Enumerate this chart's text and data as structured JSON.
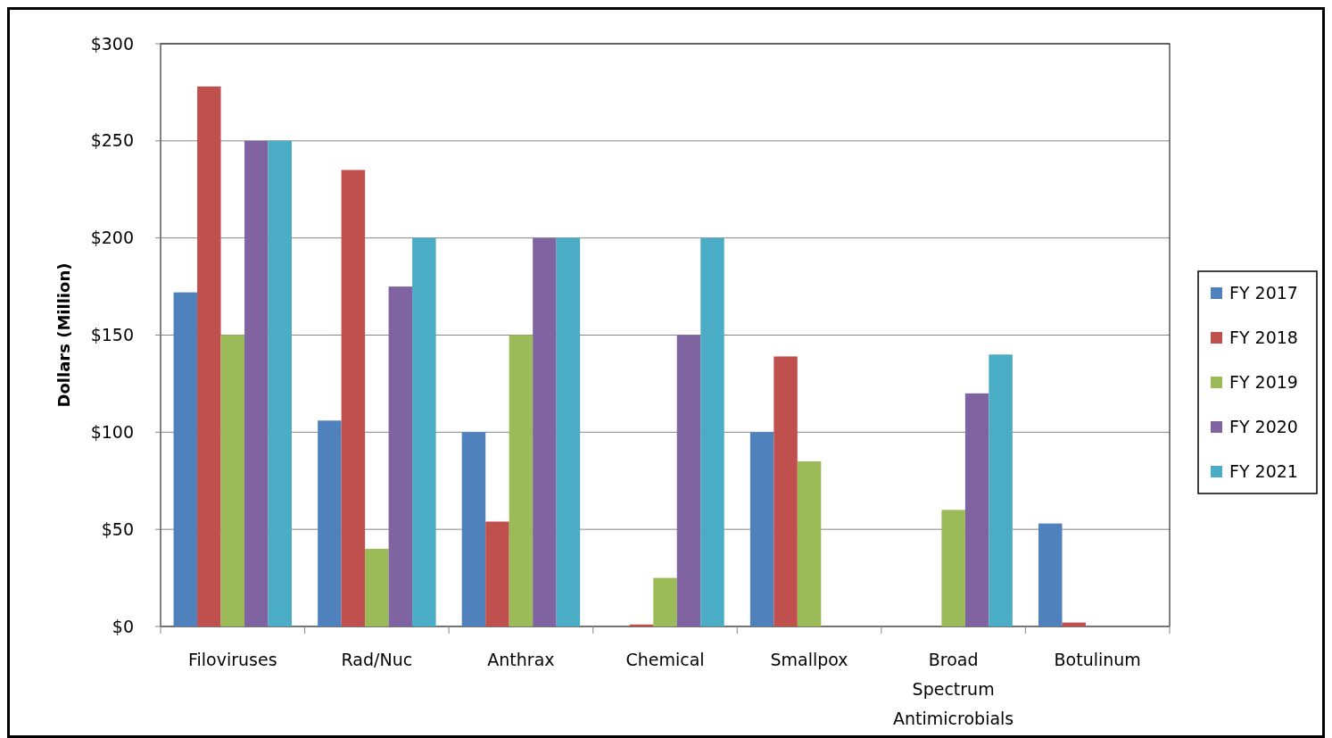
{
  "chart_data": {
    "type": "bar",
    "ylabel": "Dollars (Million)",
    "categories": [
      "Filoviruses",
      "Rad/Nuc",
      "Anthrax",
      "Chemical",
      "Smallpox",
      "Broad Spectrum Antimicrobials",
      "Botulinum"
    ],
    "series": [
      {
        "name": "FY 2017",
        "color": "#4f81bd",
        "values": [
          172,
          106,
          100,
          null,
          100,
          null,
          53
        ]
      },
      {
        "name": "FY 2018",
        "color": "#c0504d",
        "values": [
          278,
          235,
          54,
          1,
          139,
          null,
          2
        ]
      },
      {
        "name": "FY 2019",
        "color": "#9bbb59",
        "values": [
          150,
          40,
          150,
          25,
          85,
          60,
          null
        ]
      },
      {
        "name": "FY 2020",
        "color": "#8064a2",
        "values": [
          250,
          175,
          200,
          150,
          null,
          120,
          null
        ]
      },
      {
        "name": "FY 2021",
        "color": "#4bacc6",
        "values": [
          250,
          200,
          200,
          200,
          null,
          140,
          null
        ]
      }
    ],
    "ylim": [
      0,
      300
    ],
    "yticks": [
      {
        "value": 0,
        "label": "$0"
      },
      {
        "value": 50,
        "label": "$50"
      },
      {
        "value": 100,
        "label": "$100"
      },
      {
        "value": 150,
        "label": "$150"
      },
      {
        "value": 200,
        "label": "$200"
      },
      {
        "value": 250,
        "label": "$250"
      },
      {
        "value": 300,
        "label": "$300"
      }
    ],
    "grid": "y",
    "legend": "right"
  }
}
